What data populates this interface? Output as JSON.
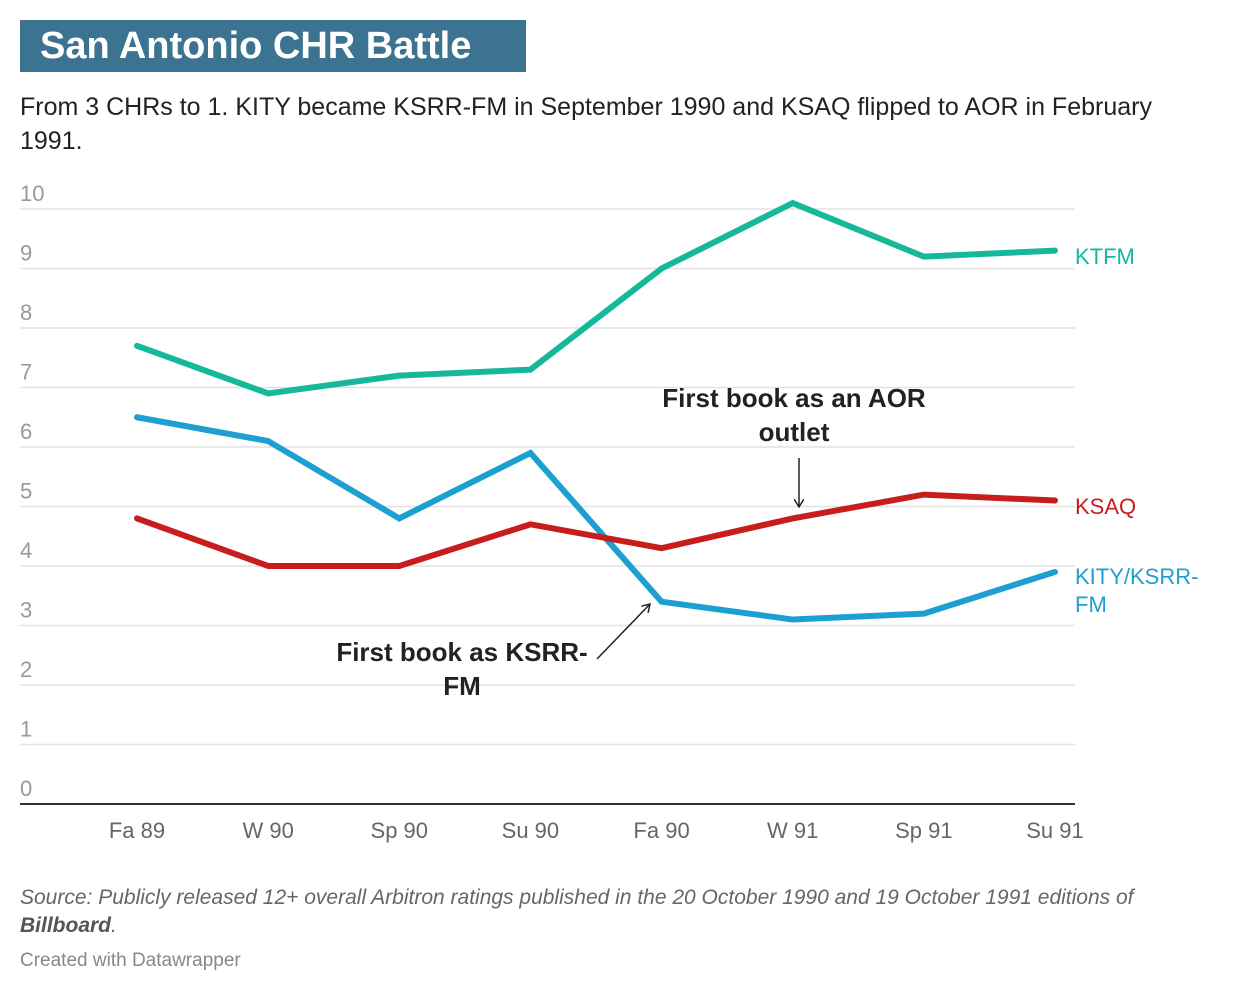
{
  "title": "San Antonio CHR Battle",
  "subtitle": "From 3 CHRs to 1. KITY became KSRR-FM in September 1990 and KSAQ flipped to AOR in February 1991.",
  "source": {
    "prefix": "Source: Publicly released 12+ overall Arbitron ratings published in the 20 October 1990 and 19 October 1991 editions of ",
    "publication": "Billboard",
    "suffix": "."
  },
  "credit": "Created with Datawrapper",
  "colors": {
    "title_bg": "#3b7391",
    "KTFM": "#15b99a",
    "KSAQ": "#c71e1d",
    "KITY/KSRR-FM": "#1d9fd1",
    "grid": "#e2e2e2",
    "tick": "#999999",
    "annotation": "#222222"
  },
  "chart_data": {
    "type": "line",
    "title": "",
    "xlabel": "",
    "ylabel": "",
    "x": [
      "Fa 89",
      "W 90",
      "Sp 90",
      "Su 90",
      "Fa 90",
      "W 91",
      "Sp 91",
      "Su 91"
    ],
    "ylim": [
      0,
      10
    ],
    "yticks": [
      "10",
      "9",
      "8",
      "7",
      "6",
      "5",
      "4",
      "3",
      "2",
      "1",
      "0"
    ],
    "grid": true,
    "series": [
      {
        "name": "KTFM",
        "label_lines": [
          "KTFM"
        ],
        "values": [
          7.7,
          6.9,
          7.2,
          7.3,
          9.0,
          10.1,
          9.2,
          9.3
        ]
      },
      {
        "name": "KSAQ",
        "label_lines": [
          "KSAQ"
        ],
        "values": [
          4.8,
          4.0,
          4.0,
          4.7,
          4.3,
          4.8,
          5.2,
          5.1
        ]
      },
      {
        "name": "KITY/KSRR-FM",
        "label_lines": [
          "KITY/KSRR-",
          "FM"
        ],
        "values": [
          6.5,
          6.1,
          4.8,
          5.9,
          3.4,
          3.1,
          3.2,
          3.9
        ]
      }
    ],
    "annotations": [
      {
        "lines": [
          "First book as an AOR",
          "outlet"
        ],
        "series": "KSAQ",
        "x": "W 91"
      },
      {
        "lines": [
          "First book as KSRR-",
          "FM"
        ],
        "series": "KITY/KSRR-FM",
        "x": "Fa 90"
      }
    ]
  }
}
